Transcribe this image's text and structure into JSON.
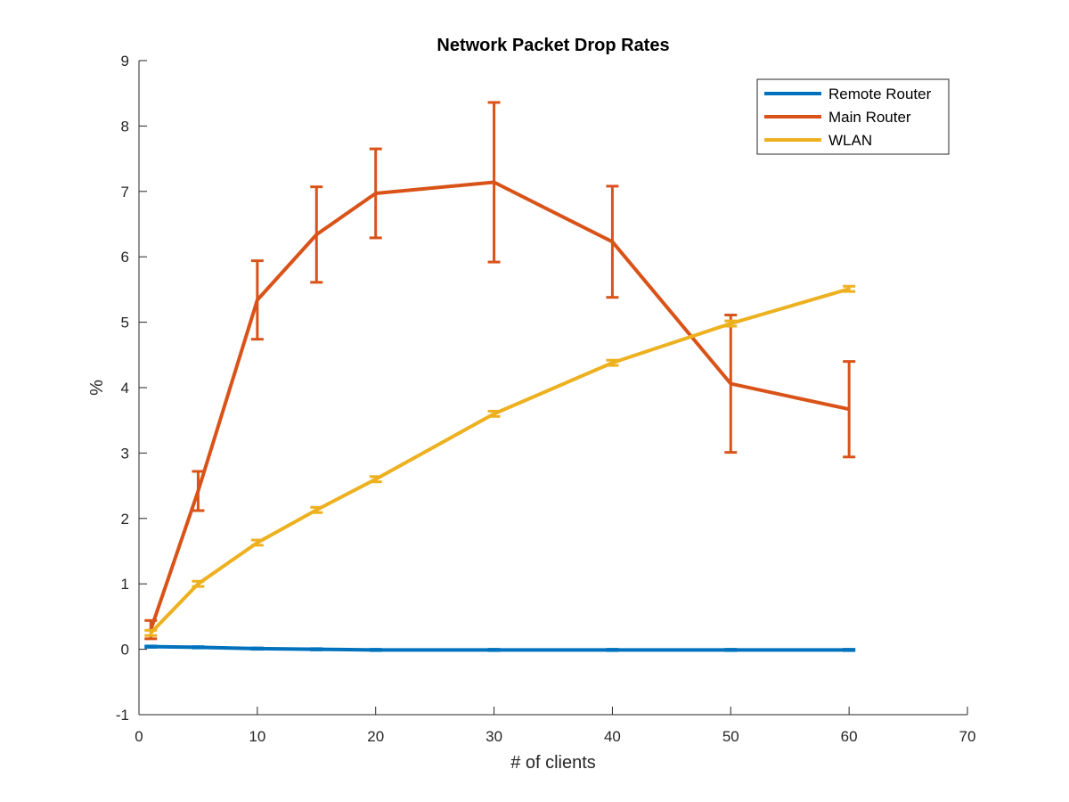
{
  "chart_data": {
    "type": "line",
    "title": "Network Packet Drop Rates",
    "xlabel": "# of clients",
    "ylabel": "%",
    "xlim": [
      0,
      70
    ],
    "ylim": [
      -1,
      9
    ],
    "xticks": [
      0,
      10,
      20,
      30,
      40,
      50,
      60,
      70
    ],
    "yticks": [
      -1,
      0,
      1,
      2,
      3,
      4,
      5,
      6,
      7,
      8,
      9
    ],
    "grid": false,
    "legend_location": "top-right",
    "x": [
      1,
      5,
      10,
      15,
      20,
      30,
      40,
      50,
      60
    ],
    "series": [
      {
        "name": "Remote Router",
        "color": "#0072BD",
        "values": [
          0.04,
          0.03,
          0.01,
          0.0,
          -0.01,
          -0.01,
          -0.01,
          -0.01,
          -0.01
        ],
        "error": [
          0.01,
          0.01,
          0.01,
          0.01,
          0.01,
          0.01,
          0.01,
          0.01,
          0.01
        ]
      },
      {
        "name": "Main Router",
        "color": "#D95319",
        "values": [
          0.3,
          2.42,
          5.34,
          6.34,
          6.97,
          7.14,
          6.23,
          4.06,
          3.67
        ],
        "error": [
          0.14,
          0.3,
          0.6,
          0.73,
          0.68,
          1.22,
          0.85,
          1.05,
          0.73
        ]
      },
      {
        "name": "WLAN",
        "color": "#EDB120",
        "values": [
          0.25,
          1.0,
          1.63,
          2.13,
          2.6,
          3.6,
          4.38,
          4.98,
          5.51
        ],
        "error": [
          0.04,
          0.04,
          0.04,
          0.04,
          0.04,
          0.04,
          0.04,
          0.04,
          0.04
        ]
      }
    ]
  }
}
